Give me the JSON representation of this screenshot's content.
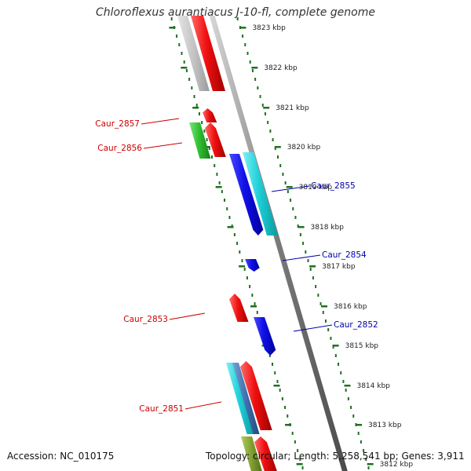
{
  "title": "Chloroflexus aurantiacus J-10-fl, complete genome",
  "footer": {
    "accession": "Accession: NC_010175",
    "summary": "Topology: circular; Length: 5,258,541 bp; Genes: 3,911"
  },
  "colors": {
    "forward_gene": "#e8101a",
    "reverse_gene": "#1010e0",
    "cyan_gene": "#20d0d8",
    "green_gene": "#30c030",
    "grey_gene": "#c0c0c0",
    "olive_gene": "#80a030",
    "scale_ticks": "#207020",
    "left_label": "#cc0000",
    "right_label": "#0000aa"
  },
  "scale_labels": [
    "3823 kbp",
    "3822 kbp",
    "3821 kbp",
    "3820 kbp",
    "3819 kbp",
    "3818 kbp",
    "3817 kbp",
    "3816 kbp",
    "3815 kbp",
    "3814 kbp",
    "3813 kbp",
    "3812 kbp"
  ],
  "gene_labels_left": [
    "Caur_2857",
    "Caur_2856",
    "Caur_2853",
    "Caur_2851"
  ],
  "gene_labels_right": [
    "Caur_2855",
    "Caur_2854",
    "Caur_2852"
  ]
}
